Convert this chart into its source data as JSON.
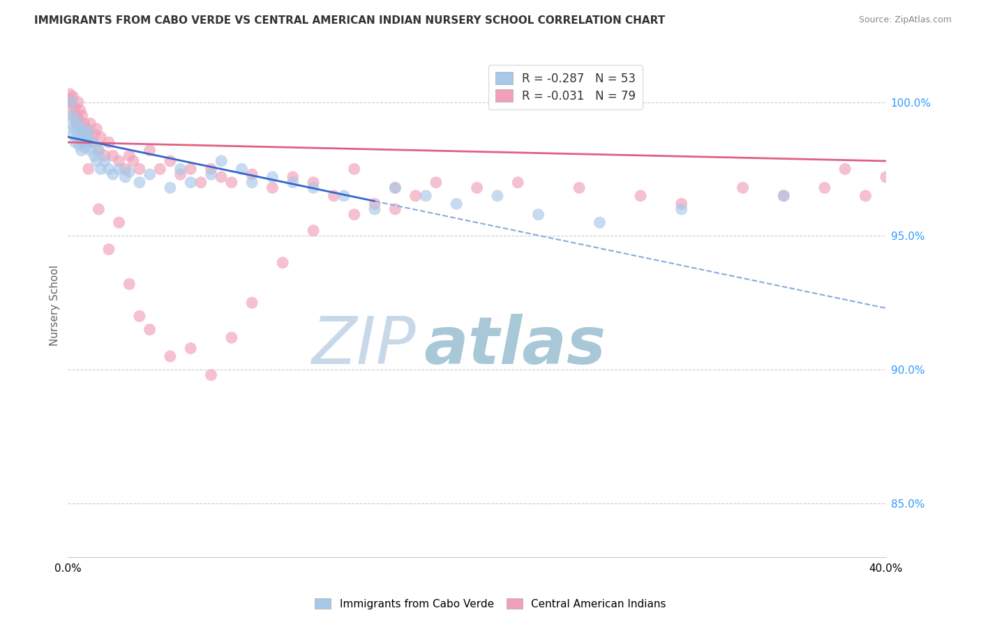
{
  "title": "IMMIGRANTS FROM CABO VERDE VS CENTRAL AMERICAN INDIAN NURSERY SCHOOL CORRELATION CHART",
  "source": "Source: ZipAtlas.com",
  "ylabel": "Nursery School",
  "xmin": 0.0,
  "xmax": 40.0,
  "ymin": 83.0,
  "ymax": 101.8,
  "legend_blue_label_r": "R = ",
  "legend_blue_r_val": "-0.287",
  "legend_blue_n": "   N = 53",
  "legend_pink_label_r": "R = ",
  "legend_pink_r_val": "-0.031",
  "legend_pink_n": "   N = 79",
  "legend_label1": "Immigrants from Cabo Verde",
  "legend_label2": "Central American Indians",
  "blue_scatter_x": [
    0.1,
    0.15,
    0.2,
    0.25,
    0.3,
    0.35,
    0.4,
    0.45,
    0.5,
    0.55,
    0.6,
    0.65,
    0.7,
    0.75,
    0.8,
    0.85,
    0.9,
    0.95,
    1.0,
    1.1,
    1.2,
    1.3,
    1.4,
    1.5,
    1.6,
    1.8,
    2.0,
    2.2,
    2.5,
    2.8,
    3.0,
    3.5,
    4.0,
    5.0,
    5.5,
    6.0,
    7.0,
    7.5,
    8.5,
    9.0,
    10.0,
    11.0,
    12.0,
    13.5,
    15.0,
    16.0,
    17.5,
    19.0,
    21.0,
    23.0,
    26.0,
    30.0,
    35.0
  ],
  "blue_scatter_y": [
    99.2,
    100.0,
    99.5,
    98.8,
    99.0,
    98.5,
    99.3,
    98.7,
    99.1,
    98.4,
    98.6,
    98.2,
    99.0,
    98.5,
    98.8,
    98.3,
    98.7,
    98.5,
    98.9,
    98.2,
    98.5,
    98.0,
    97.8,
    98.2,
    97.5,
    97.8,
    97.5,
    97.3,
    97.5,
    97.2,
    97.4,
    97.0,
    97.3,
    96.8,
    97.5,
    97.0,
    97.3,
    97.8,
    97.5,
    97.0,
    97.2,
    97.0,
    96.8,
    96.5,
    96.0,
    96.8,
    96.5,
    96.2,
    96.5,
    95.8,
    95.5,
    96.0,
    96.5
  ],
  "pink_scatter_x": [
    0.05,
    0.1,
    0.15,
    0.2,
    0.25,
    0.3,
    0.35,
    0.4,
    0.45,
    0.5,
    0.55,
    0.6,
    0.65,
    0.7,
    0.75,
    0.8,
    0.85,
    0.9,
    1.0,
    1.1,
    1.2,
    1.3,
    1.4,
    1.5,
    1.6,
    1.8,
    2.0,
    2.2,
    2.5,
    2.8,
    3.0,
    3.2,
    3.5,
    4.0,
    4.5,
    5.0,
    5.5,
    6.0,
    6.5,
    7.0,
    7.5,
    8.0,
    9.0,
    10.0,
    11.0,
    12.0,
    13.0,
    14.0,
    15.0,
    16.0,
    17.0,
    18.0,
    20.0,
    22.0,
    25.0,
    28.0,
    30.0,
    33.0,
    35.0,
    37.0,
    38.0,
    39.0,
    40.0,
    1.0,
    1.5,
    2.0,
    2.5,
    3.0,
    3.5,
    4.0,
    5.0,
    6.0,
    7.0,
    8.0,
    9.0,
    10.5,
    12.0,
    14.0,
    16.0
  ],
  "pink_scatter_y": [
    100.1,
    100.3,
    100.0,
    99.8,
    100.2,
    99.5,
    99.8,
    99.2,
    99.5,
    100.0,
    99.3,
    99.7,
    99.0,
    99.5,
    98.8,
    99.2,
    98.5,
    99.0,
    98.8,
    99.2,
    98.5,
    98.8,
    99.0,
    98.2,
    98.7,
    98.0,
    98.5,
    98.0,
    97.8,
    97.5,
    98.0,
    97.8,
    97.5,
    98.2,
    97.5,
    97.8,
    97.3,
    97.5,
    97.0,
    97.5,
    97.2,
    97.0,
    97.3,
    96.8,
    97.2,
    97.0,
    96.5,
    97.5,
    96.2,
    96.8,
    96.5,
    97.0,
    96.8,
    97.0,
    96.8,
    96.5,
    96.2,
    96.8,
    96.5,
    96.8,
    97.5,
    96.5,
    97.2,
    97.5,
    96.0,
    94.5,
    95.5,
    93.2,
    92.0,
    91.5,
    90.5,
    90.8,
    89.8,
    91.2,
    92.5,
    94.0,
    95.2,
    95.8,
    96.0
  ],
  "blue_color": "#a8c8e8",
  "pink_color": "#f0a0b8",
  "blue_line_color": "#3366cc",
  "pink_line_color": "#e06080",
  "dashed_line_color": "#88aadd",
  "blue_line_x0": 0.0,
  "blue_line_y0": 98.7,
  "blue_line_x1": 15.0,
  "blue_line_y1": 96.3,
  "blue_dash_x0": 15.0,
  "blue_dash_y0": 96.3,
  "blue_dash_x1": 40.0,
  "blue_dash_y1": 92.3,
  "pink_line_x0": 0.0,
  "pink_line_y0": 98.5,
  "pink_line_x1": 40.0,
  "pink_line_y1": 97.8,
  "watermark_zip": "ZIP",
  "watermark_atlas": "atlas",
  "watermark_color_zip": "#c8d8e8",
  "watermark_color_atlas": "#a8c8d8"
}
